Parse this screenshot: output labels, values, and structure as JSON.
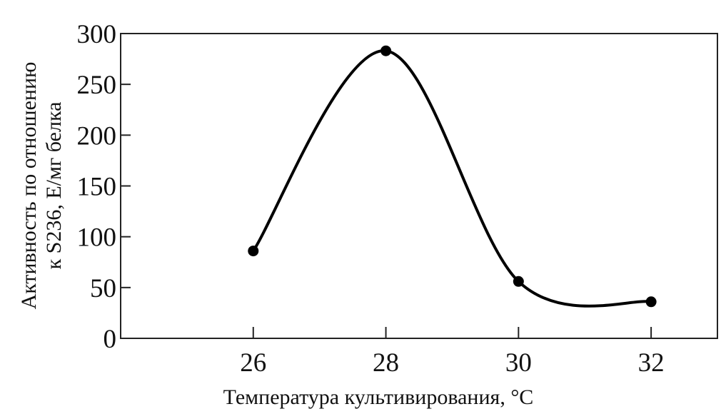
{
  "chart_data": {
    "type": "line",
    "title": "",
    "xlabel": "Температура культивирования, °С",
    "ylabel_lines": [
      "Активность по отношению",
      "к S236, Е/мг белка"
    ],
    "xlim": [
      24,
      33
    ],
    "ylim": [
      0,
      300
    ],
    "xticks": [
      26,
      28,
      30,
      32
    ],
    "yticks": [
      0,
      50,
      100,
      150,
      200,
      250,
      300
    ],
    "x": [
      26,
      28,
      30,
      32
    ],
    "y": [
      86,
      283,
      56,
      36
    ],
    "smooth": true,
    "grid": false,
    "line_color": "#000000",
    "marker": "circle"
  }
}
